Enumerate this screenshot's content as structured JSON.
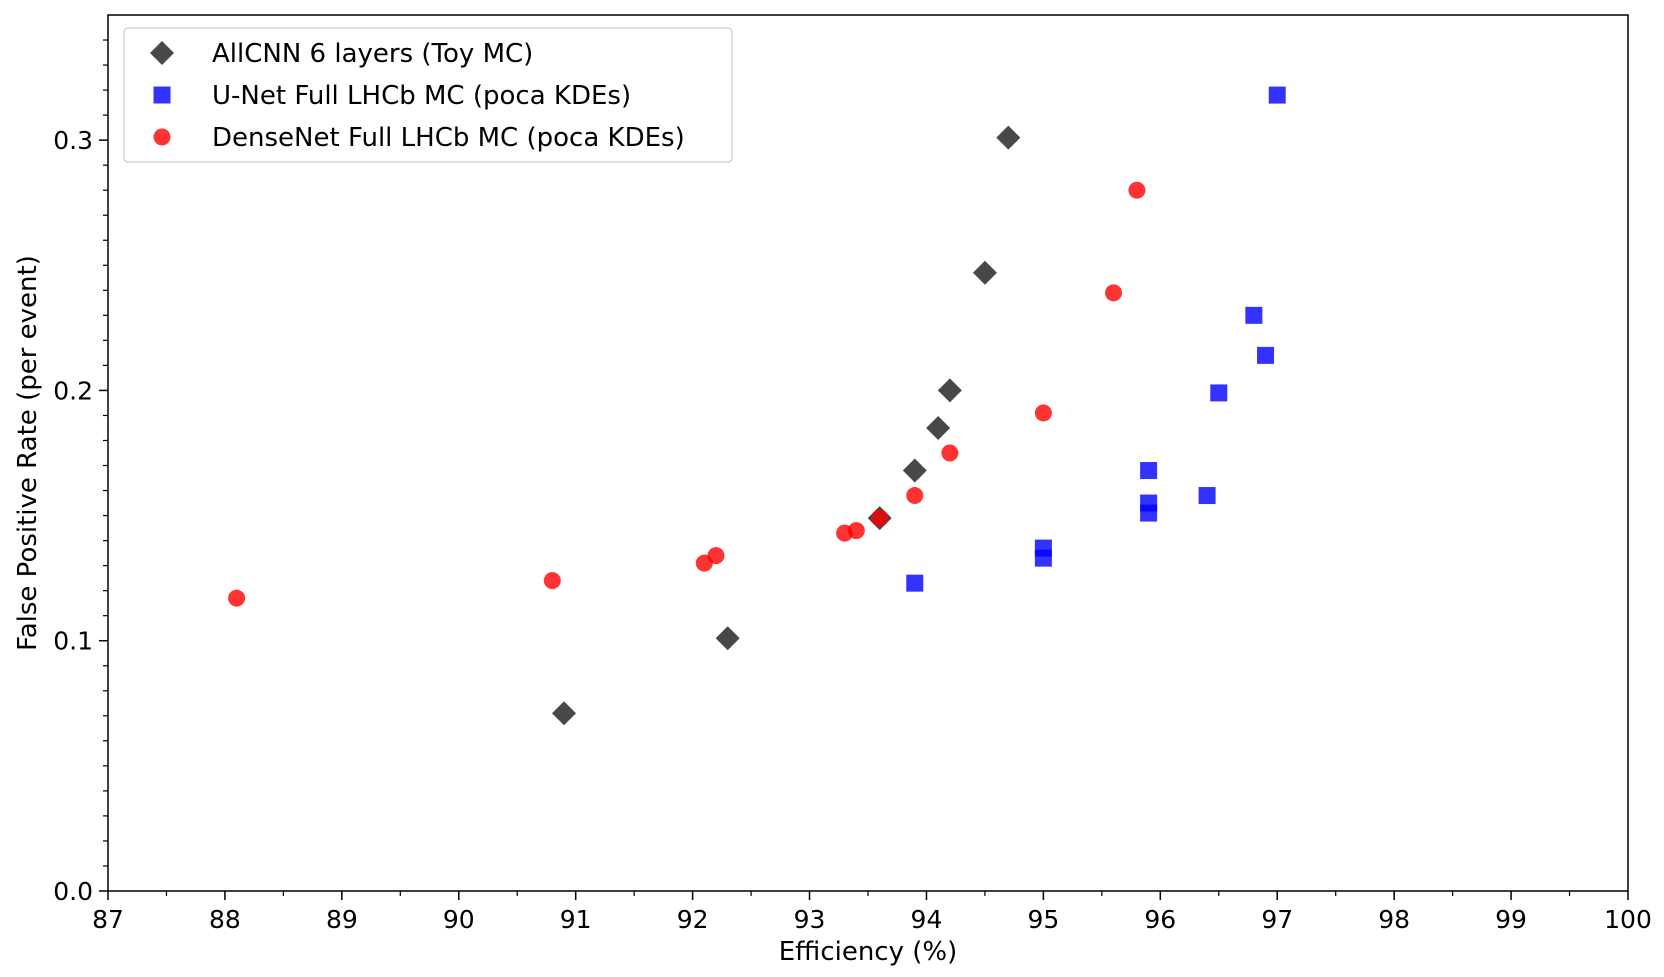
{
  "chart_data": {
    "type": "scatter",
    "xlabel": "Efficiency (%)",
    "ylabel": "False Positive Rate (per event)",
    "xlim": [
      87,
      100
    ],
    "ylim": [
      0.0,
      0.35
    ],
    "xticks": [
      87,
      88,
      89,
      90,
      91,
      92,
      93,
      94,
      95,
      96,
      97,
      98,
      99,
      100
    ],
    "yticks": [
      "0.0",
      "0.1",
      "0.2",
      "0.3"
    ],
    "grid": false,
    "legend_position": "top-left",
    "series": [
      {
        "name": "AllCNN 6 layers (Toy MC)",
        "marker": "diamond",
        "color": "#1a1a1a",
        "points": [
          {
            "x": 90.9,
            "y": 0.071
          },
          {
            "x": 92.3,
            "y": 0.101
          },
          {
            "x": 93.6,
            "y": 0.149
          },
          {
            "x": 93.9,
            "y": 0.168
          },
          {
            "x": 94.1,
            "y": 0.185
          },
          {
            "x": 94.2,
            "y": 0.2
          },
          {
            "x": 94.5,
            "y": 0.247
          },
          {
            "x": 94.7,
            "y": 0.301
          }
        ]
      },
      {
        "name": "U-Net Full LHCb MC (poca KDEs)",
        "marker": "square",
        "color": "#0000ff",
        "points": [
          {
            "x": 93.9,
            "y": 0.123
          },
          {
            "x": 95.0,
            "y": 0.133
          },
          {
            "x": 95.0,
            "y": 0.137
          },
          {
            "x": 95.9,
            "y": 0.151
          },
          {
            "x": 95.9,
            "y": 0.155
          },
          {
            "x": 95.9,
            "y": 0.168
          },
          {
            "x": 96.4,
            "y": 0.158
          },
          {
            "x": 96.5,
            "y": 0.199
          },
          {
            "x": 96.8,
            "y": 0.23
          },
          {
            "x": 96.9,
            "y": 0.214
          },
          {
            "x": 97.0,
            "y": 0.318
          }
        ]
      },
      {
        "name": "DenseNet Full LHCb MC (poca KDEs)",
        "marker": "circle",
        "color": "#ff0000",
        "points": [
          {
            "x": 88.1,
            "y": 0.117
          },
          {
            "x": 90.8,
            "y": 0.124
          },
          {
            "x": 92.1,
            "y": 0.131
          },
          {
            "x": 92.2,
            "y": 0.134
          },
          {
            "x": 93.3,
            "y": 0.143
          },
          {
            "x": 93.4,
            "y": 0.144
          },
          {
            "x": 93.6,
            "y": 0.149
          },
          {
            "x": 93.9,
            "y": 0.158
          },
          {
            "x": 94.2,
            "y": 0.175
          },
          {
            "x": 95.0,
            "y": 0.191
          },
          {
            "x": 95.6,
            "y": 0.239
          },
          {
            "x": 95.8,
            "y": 0.28
          }
        ]
      }
    ]
  }
}
